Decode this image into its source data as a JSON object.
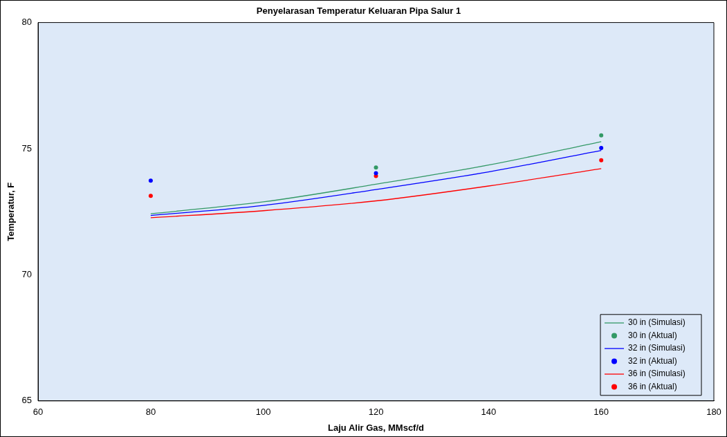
{
  "chart_data": {
    "type": "line",
    "title": "Penyelarasan Temperatur Keluaran Pipa Salur 1",
    "xlabel": "Laju Alir Gas, MMscf/d",
    "ylabel": "Temperatur, F",
    "xlim": [
      60,
      180
    ],
    "xticks": [
      60,
      80,
      100,
      120,
      140,
      160,
      180
    ],
    "ylim": [
      65,
      80
    ],
    "yticks": [
      65,
      70,
      75,
      80
    ],
    "grid": false,
    "legend": "bottom right",
    "series": [
      {
        "name": "30 in (Simulasi)",
        "color": "#339966",
        "x": [
          80,
          100,
          120,
          140,
          160
        ],
        "values": [
          72.42,
          72.89,
          73.59,
          74.35,
          75.28
        ],
        "marker": "none"
      },
      {
        "name": "30 in (Aktual)",
        "type": "scatter",
        "color": "#339966",
        "x": [
          120,
          160
        ],
        "values": [
          74.25,
          75.53
        ],
        "marker": "circle"
      },
      {
        "name": "32 in (Simulasi)",
        "color": "#0000ff",
        "x": [
          80,
          100,
          120,
          140,
          160
        ],
        "values": [
          72.35,
          72.75,
          73.38,
          74.08,
          74.93
        ],
        "marker": "none"
      },
      {
        "name": "32 in (Aktual)",
        "type": "scatter",
        "color": "#0000ff",
        "x": [
          80,
          120,
          160
        ],
        "values": [
          73.73,
          74.03,
          75.03
        ],
        "marker": "circle"
      },
      {
        "name": "36 in (Simulasi)",
        "color": "#ff0000",
        "x": [
          80,
          100,
          120,
          140,
          160
        ],
        "values": [
          72.26,
          72.54,
          72.93,
          73.52,
          74.21
        ],
        "marker": "none"
      },
      {
        "name": "36 in (Aktual)",
        "type": "scatter",
        "color": "#ff0000",
        "x": [
          80,
          120,
          160
        ],
        "values": [
          73.13,
          73.92,
          74.54
        ],
        "marker": "circle"
      }
    ]
  }
}
